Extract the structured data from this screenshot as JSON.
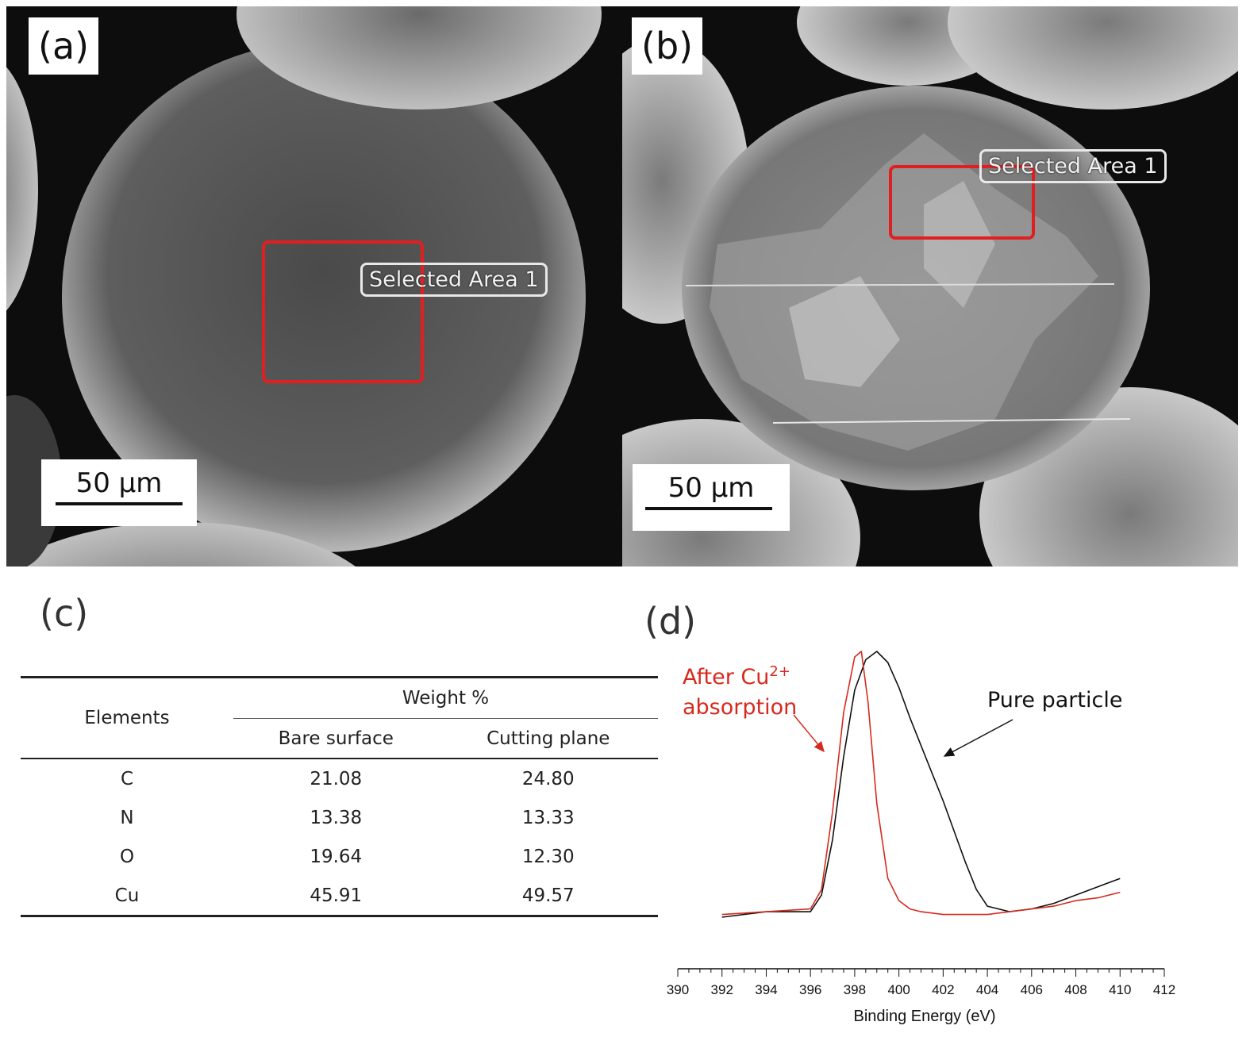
{
  "panel_a": {
    "label": "(a)",
    "area_label": "Selected Area 1",
    "scale_label": "50 μm"
  },
  "panel_b": {
    "label": "(b)",
    "area_label": "Selected Area 1",
    "scale_label": "50 μm"
  },
  "panel_c": {
    "label": "(c)",
    "table": {
      "col_elements": "Elements",
      "col_group": "Weight %",
      "col_bare": "Bare surface",
      "col_cut": "Cutting plane",
      "rows": [
        {
          "element": "C",
          "bare": "21.08",
          "cut": "24.80"
        },
        {
          "element": "N",
          "bare": "13.38",
          "cut": "13.33"
        },
        {
          "element": "O",
          "bare": "19.64",
          "cut": "12.30"
        },
        {
          "element": "Cu",
          "bare": "45.91",
          "cut": "49.57"
        }
      ]
    }
  },
  "panel_d": {
    "label": "(d)",
    "annotation_after_line1": "After Cu",
    "annotation_after_sup": "2+",
    "annotation_after_line2": "absorption",
    "annotation_pure": "Pure particle",
    "colors": {
      "after": "#d62a1e",
      "pure": "#111111"
    }
  },
  "chart_data": {
    "type": "line",
    "xlabel": "Binding Energy (eV)",
    "ylabel": "",
    "xlim": [
      390,
      412
    ],
    "xticks": [
      390,
      392,
      394,
      396,
      398,
      400,
      402,
      404,
      406,
      408,
      410,
      412
    ],
    "series": [
      {
        "name": "Pure particle",
        "x": [
          392,
          394,
          396,
          396.5,
          397,
          397.5,
          398,
          398.5,
          399,
          399.5,
          400,
          400.5,
          401,
          401.5,
          402,
          402.5,
          403,
          403.5,
          404,
          405,
          406,
          407,
          408,
          409,
          410
        ],
        "y": [
          0.04,
          0.06,
          0.06,
          0.12,
          0.32,
          0.62,
          0.86,
          0.97,
          1.0,
          0.96,
          0.87,
          0.76,
          0.66,
          0.56,
          0.46,
          0.35,
          0.24,
          0.14,
          0.08,
          0.06,
          0.07,
          0.09,
          0.12,
          0.15,
          0.18
        ]
      },
      {
        "name": "After Cu2+ absorption",
        "x": [
          392,
          394,
          396,
          396.5,
          397,
          397.5,
          398,
          398.3,
          398.6,
          399,
          399.5,
          400,
          400.5,
          401,
          402,
          403,
          404,
          405,
          406,
          407,
          408,
          409,
          410
        ],
        "y": [
          0.05,
          0.06,
          0.07,
          0.14,
          0.42,
          0.78,
          0.98,
          1.0,
          0.82,
          0.45,
          0.18,
          0.1,
          0.07,
          0.06,
          0.05,
          0.05,
          0.05,
          0.06,
          0.07,
          0.08,
          0.1,
          0.11,
          0.13
        ]
      }
    ]
  }
}
